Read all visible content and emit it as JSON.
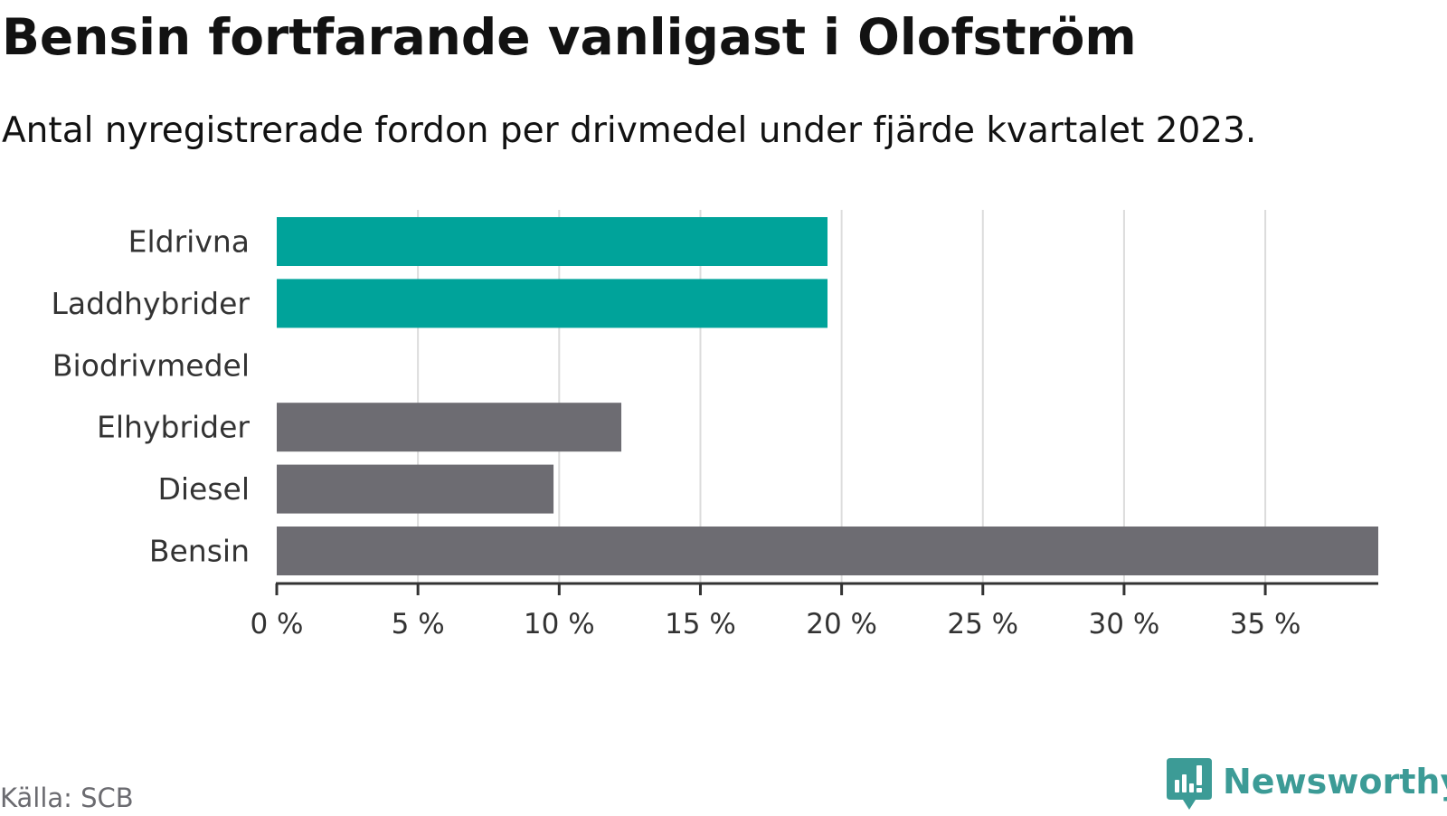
{
  "header": {
    "title": "Bensin fortfarande vanligast i Olofström",
    "subtitle": "Antal nyregistrerade fordon per drivmedel under fjärde kvartalet 2023."
  },
  "footer": {
    "source": "Källa: SCB",
    "brand": "Newsworthy"
  },
  "chart_data": {
    "type": "bar",
    "orientation": "horizontal",
    "title": "Bensin fortfarande vanligast i Olofström",
    "subtitle": "Antal nyregistrerade fordon per drivmedel under fjärde kvartalet 2023.",
    "xlabel": "",
    "ylabel": "",
    "unit": "%",
    "categories": [
      "Eldrivna",
      "Laddhybrider",
      "Biodrivmedel",
      "Elhybrider",
      "Diesel",
      "Bensin"
    ],
    "values": [
      19.5,
      19.5,
      0,
      12.2,
      9.8,
      39.0
    ],
    "colors": [
      "#00a39a",
      "#00a39a",
      "#00a39a",
      "#6d6c72",
      "#6d6c72",
      "#6d6c72"
    ],
    "xlim": [
      0,
      39
    ],
    "ticks": [
      0,
      5,
      10,
      15,
      20,
      25,
      30,
      35
    ],
    "tick_labels": [
      "0 %",
      "5 %",
      "10 %",
      "15 %",
      "20 %",
      "25 %",
      "30 %",
      "35 %"
    ],
    "grid": true,
    "legend": "none"
  },
  "colors": {
    "green": "#00a39a",
    "gray": "#6d6c72",
    "grid": "#dcdcdc",
    "axis": "#333333",
    "brand": "#3c9b96"
  }
}
